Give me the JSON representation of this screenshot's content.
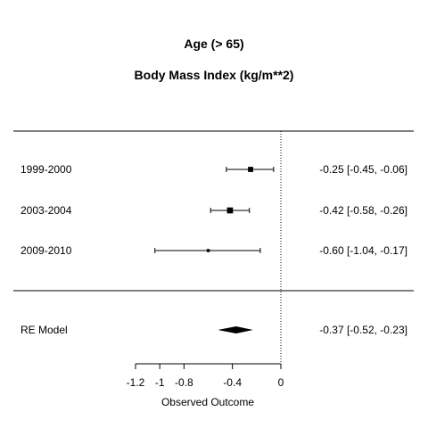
{
  "chart_data": {
    "type": "forest",
    "title": "Age (> 65)",
    "subtitle": "Body Mass Index (kg/m**2)",
    "xlabel": "Observed Outcome",
    "xlim": [
      -1.2,
      0
    ],
    "xticks": [
      -1.2,
      -1,
      -0.8,
      -0.4,
      0
    ],
    "xtick_labels": [
      "-1.2",
      "-1",
      "-0.8",
      "-0.4",
      "0"
    ],
    "reference_line": 0,
    "studies": [
      {
        "label": "1999-2000",
        "estimate": -0.25,
        "ci_low": -0.45,
        "ci_high": -0.06,
        "ci_text": "-0.25 [-0.45, -0.06]",
        "weight": 0.55
      },
      {
        "label": "2003-2004",
        "estimate": -0.42,
        "ci_low": -0.58,
        "ci_high": -0.26,
        "ci_text": "-0.42 [-0.58, -0.26]",
        "weight": 0.7
      },
      {
        "label": "2009-2010",
        "estimate": -0.6,
        "ci_low": -1.04,
        "ci_high": -0.17,
        "ci_text": "-0.60 [-1.04, -0.17]",
        "weight": 0.15
      }
    ],
    "summary": {
      "label": "RE Model",
      "estimate": -0.37,
      "ci_low": -0.52,
      "ci_high": -0.23,
      "ci_text": "-0.37 [-0.52, -0.23]"
    }
  }
}
